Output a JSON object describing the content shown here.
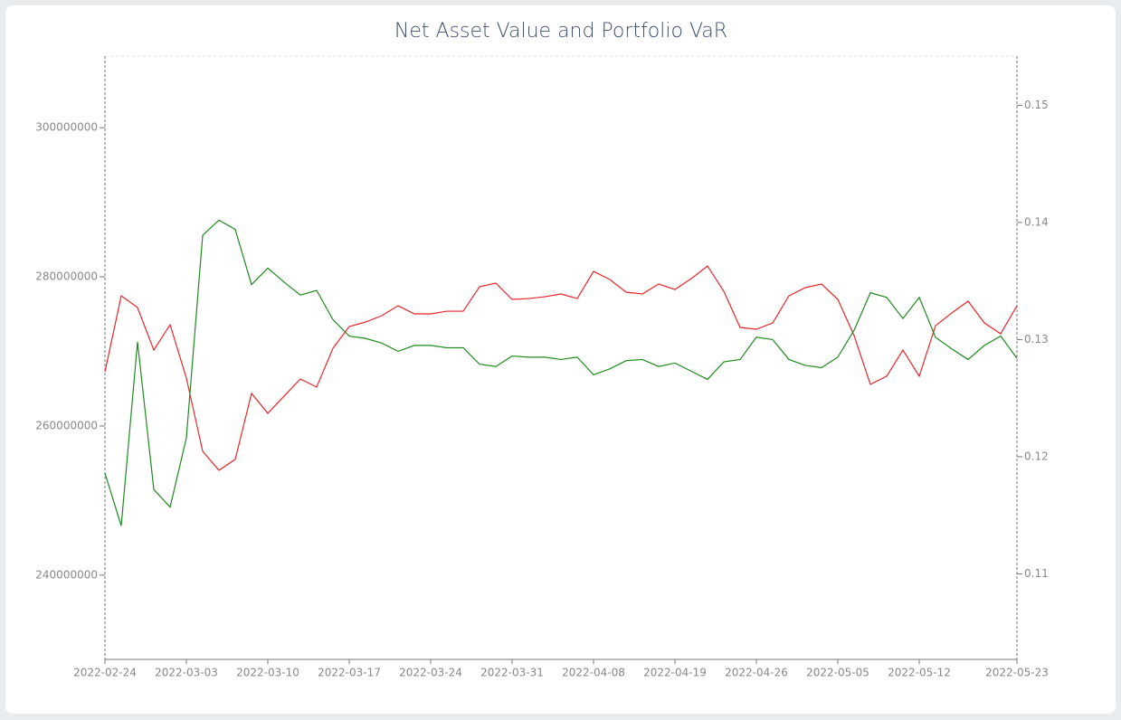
{
  "chart_data": {
    "type": "line",
    "title": "Net Asset Value and Portfolio VaR",
    "categories": [
      "2022-02-24",
      null,
      null,
      null,
      null,
      "2022-03-03",
      null,
      null,
      null,
      null,
      "2022-03-10",
      null,
      null,
      null,
      null,
      "2022-03-17",
      null,
      null,
      null,
      null,
      "2022-03-24",
      null,
      null,
      null,
      null,
      "2022-03-31",
      null,
      null,
      null,
      null,
      "2022-04-08",
      null,
      null,
      null,
      null,
      "2022-04-19",
      null,
      null,
      null,
      null,
      "2022-04-26",
      null,
      null,
      null,
      null,
      "2022-05-05",
      null,
      null,
      null,
      null,
      "2022-05-12",
      null,
      null,
      null,
      null,
      null,
      "2022-05-23"
    ],
    "series": [
      {
        "color": "#e8262b",
        "axis": "y",
        "values": [
          267270000,
          277450000,
          275880000,
          270180000,
          273580000,
          266420000,
          256610000,
          254060000,
          255520000,
          264360000,
          261700000,
          264000000,
          266300000,
          265210000,
          270420000,
          273330000,
          273940000,
          274790000,
          276120000,
          275030000,
          275030000,
          275390000,
          275390000,
          278670000,
          279150000,
          276970000,
          277090000,
          277330000,
          277700000,
          277090000,
          280730000,
          279640000,
          277940000,
          277700000,
          279030000,
          278300000,
          279760000,
          281450000,
          278060000,
          273210000,
          272970000,
          273820000,
          277450000,
          278550000,
          279030000,
          276970000,
          272120000,
          265580000,
          266670000,
          270180000,
          266670000,
          273450000,
          275150000,
          276730000,
          273820000,
          272360000,
          276120000
        ]
      },
      {
        "color": "#1f8a1f",
        "axis": "y2",
        "values": [
          0.1186,
          0.1141,
          0.1298,
          0.1172,
          0.1157,
          0.1216,
          0.1389,
          0.1402,
          0.1394,
          0.1347,
          0.1361,
          0.1349,
          0.1338,
          0.1342,
          0.1317,
          0.1303,
          0.1301,
          0.1297,
          0.129,
          0.1295,
          0.1295,
          0.1293,
          0.1293,
          0.1279,
          0.1277,
          0.1286,
          0.1285,
          0.1285,
          0.1283,
          0.1285,
          0.127,
          0.1275,
          0.1282,
          0.1283,
          0.1277,
          0.128,
          0.1273,
          0.1266,
          0.1281,
          0.1283,
          0.1302,
          0.13,
          0.1283,
          0.1278,
          0.1276,
          0.1285,
          0.1308,
          0.134,
          0.1336,
          0.1318,
          0.1336,
          0.1302,
          0.1292,
          0.1283,
          0.1295,
          0.1303,
          0.1284
        ]
      }
    ],
    "ylim": [
      228700000,
      309600000
    ],
    "yticks": [
      240000000,
      260000000,
      280000000,
      300000000
    ],
    "y2lim": [
      0.1027,
      0.1542
    ],
    "y2ticks": [
      0.11,
      0.12,
      0.13,
      0.14,
      0.15
    ],
    "grid": false
  }
}
